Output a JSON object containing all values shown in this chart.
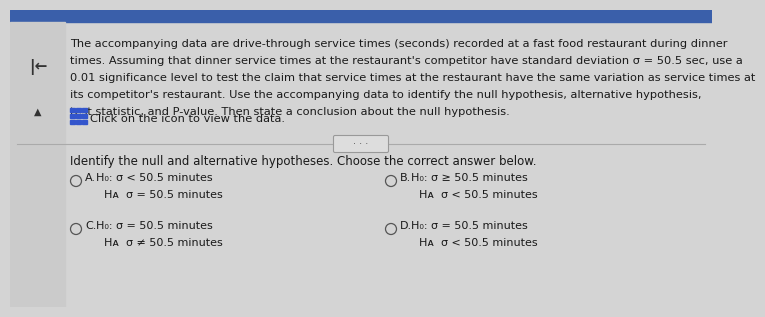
{
  "bg_top_bar_color": "#3a5faa",
  "bg_color": "#d4d4d4",
  "top_text_line1": "The accompanying data are drive-through service times (seconds) recorded at a fast food restaurant during dinner",
  "top_text_line2": "times. Assuming that dinner service times at the restaurant's competitor have standard deviation σ = 50.5 sec, use a",
  "top_text_line3": "0.01 significance level to test the claim that service times at the restaurant have the same variation as service times at",
  "top_text_line4": "its competitor's restaurant. Use the accompanying data to identify the null hypothesis, alternative hypothesis,",
  "top_text_line5": "test statistic, and P-value. Then state a conclusion about the null hypothesis.",
  "click_text": "Click on the icon to view the data.",
  "question_text": "Identify the null and alternative hypotheses. Choose the correct answer below.",
  "text_color": "#1a1a1a",
  "divider_color": "#aaaaaa",
  "font_size_main": 8.2,
  "font_size_option": 8.0,
  "font_size_question": 8.5,
  "options_h0": [
    "H₀: σ < 50.5 minutes",
    "H₀: σ ≥ 50.5 minutes",
    "H₀: σ = 50.5 minutes",
    "H₀: σ = 50.5 minutes"
  ],
  "options_ha": [
    "Hᴀ  σ = 50.5 minutes",
    "Hᴀ  σ < 50.5 minutes",
    "Hᴀ  σ ≠ 50.5 minutes",
    "Hᴀ  σ < 50.5 minutes"
  ],
  "option_labels": [
    "A.",
    "B.",
    "C.",
    "D."
  ]
}
